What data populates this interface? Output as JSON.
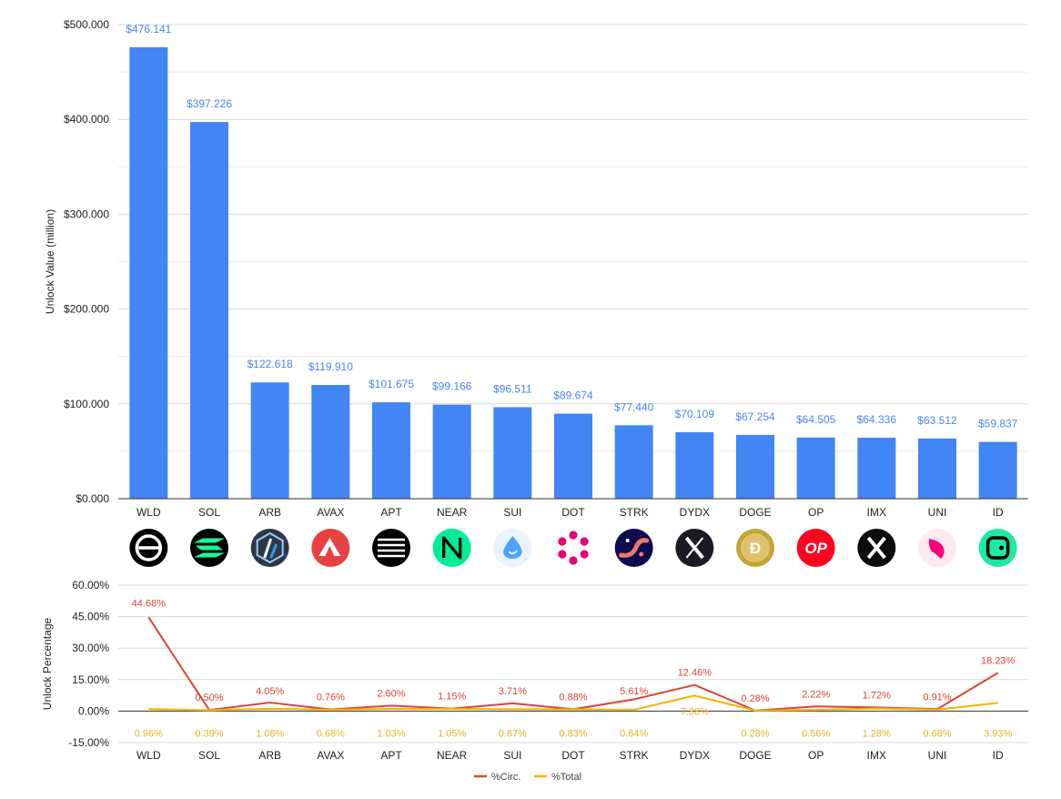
{
  "chart_data": [
    {
      "type": "bar",
      "categories": [
        "WLD",
        "SOL",
        "ARB",
        "AVAX",
        "APT",
        "NEAR",
        "SUI",
        "DOT",
        "STRK",
        "DYDX",
        "DOGE",
        "OP",
        "IMX",
        "UNI",
        "ID"
      ],
      "values": [
        476.141,
        397.226,
        122.618,
        119.91,
        101.675,
        99.166,
        96.511,
        89.674,
        77.44,
        70.109,
        67.254,
        64.505,
        64.336,
        63.512,
        59.837
      ],
      "data_labels": [
        "$476.141",
        "$397.226",
        "$122.618",
        "$119.910",
        "$101.675",
        "$99.166",
        "$96.511",
        "$89.674",
        "$77.440",
        "$70.109",
        "$67.254",
        "$64.505",
        "$64.336",
        "$63.512",
        "$59.837"
      ],
      "ylabel": "Unlock Value (million)",
      "ylim": [
        0,
        500
      ],
      "yticks": [
        0,
        100,
        200,
        300,
        400,
        500
      ],
      "ytick_labels": [
        "$0.000",
        "$100.000",
        "$200.000",
        "$300.000",
        "$400.000",
        "$500.000"
      ],
      "grid": true,
      "bar_color": "#4285f4"
    },
    {
      "type": "line",
      "categories": [
        "WLD",
        "SOL",
        "ARB",
        "AVAX",
        "APT",
        "NEAR",
        "SUI",
        "DOT",
        "STRK",
        "DYDX",
        "DOGE",
        "OP",
        "IMX",
        "UNI",
        "ID"
      ],
      "series": [
        {
          "name": "%Circ.",
          "color": "#db4437",
          "values": [
            44.68,
            0.5,
            4.05,
            0.76,
            2.6,
            1.15,
            3.71,
            0.88,
            5.61,
            12.46,
            0.28,
            2.22,
            1.72,
            0.91,
            18.23
          ],
          "labels": [
            "44.68%",
            "0.50%",
            "4.05%",
            "0.76%",
            "2.60%",
            "1.15%",
            "3.71%",
            "0.88%",
            "5.61%",
            "12.46%",
            "0.28%",
            "2.22%",
            "1.72%",
            "0.91%",
            "18.23%"
          ]
        },
        {
          "name": "%Total",
          "color": "#f4b400",
          "values": [
            0.96,
            0.39,
            1.08,
            0.68,
            1.03,
            1.05,
            0.87,
            0.83,
            0.64,
            7.38,
            0.28,
            0.56,
            1.28,
            0.68,
            3.93
          ],
          "labels": [
            "0.96%",
            "0.39%",
            "1.08%",
            "0.68%",
            "1.03%",
            "1.05%",
            "0.87%",
            "0.83%",
            "0.64%",
            "7.38%",
            "0.28%",
            "0.56%",
            "1.28%",
            "0.68%",
            "3.93%"
          ]
        }
      ],
      "ylabel": "Unlock Percentage",
      "ylim": [
        -15,
        60
      ],
      "yticks": [
        -15,
        0,
        15,
        30,
        45,
        60
      ],
      "ytick_labels": [
        "-15.00%",
        "0.00%",
        "15.00%",
        "30.00%",
        "45.00%",
        "60.00%"
      ],
      "grid": true,
      "legend": "bottom-center"
    }
  ],
  "token_icons": [
    {
      "symbol": "WLD",
      "icon": "worldcoin-icon",
      "bg": "#000000",
      "fg": "#ffffff"
    },
    {
      "symbol": "SOL",
      "icon": "solana-icon",
      "bg": "#000000",
      "fg": "#19fb9b"
    },
    {
      "symbol": "ARB",
      "icon": "arbitrum-icon",
      "bg": "#2d374b",
      "fg": "#ffffff"
    },
    {
      "symbol": "AVAX",
      "icon": "avalanche-icon",
      "bg": "#e84142",
      "fg": "#ffffff"
    },
    {
      "symbol": "APT",
      "icon": "aptos-icon",
      "bg": "#000000",
      "fg": "#ffffff"
    },
    {
      "symbol": "NEAR",
      "icon": "near-icon",
      "bg": "#00ec97",
      "fg": "#000000"
    },
    {
      "symbol": "SUI",
      "icon": "sui-icon",
      "bg": "#e8f3fc",
      "fg": "#4da2ff"
    },
    {
      "symbol": "DOT",
      "icon": "polkadot-icon",
      "bg": "#ffffff",
      "fg": "#e6007a"
    },
    {
      "symbol": "STRK",
      "icon": "starknet-icon",
      "bg": "#0c0c4f",
      "fg": "#ec796b"
    },
    {
      "symbol": "DYDX",
      "icon": "dydx-icon",
      "bg": "#1b1b24",
      "fg": "#ffffff"
    },
    {
      "symbol": "DOGE",
      "icon": "dogecoin-icon",
      "bg": "#c2a633",
      "fg": "#ffffff"
    },
    {
      "symbol": "OP",
      "icon": "optimism-icon",
      "bg": "#ff0420",
      "fg": "#ffffff",
      "text": "OP"
    },
    {
      "symbol": "IMX",
      "icon": "immutable-x-icon",
      "bg": "#0d0d0d",
      "fg": "#ffffff"
    },
    {
      "symbol": "UNI",
      "icon": "uniswap-icon",
      "bg": "#fdeaf1",
      "fg": "#ff007a"
    },
    {
      "symbol": "ID",
      "icon": "space-id-icon",
      "bg": "#1ee8a6",
      "fg": "#000000"
    }
  ]
}
